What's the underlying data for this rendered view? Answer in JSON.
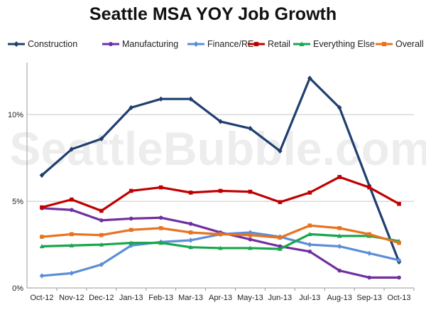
{
  "chart_data": {
    "type": "line",
    "title": "Seattle MSA YOY Job Growth",
    "watermark": "SeattleBubble.com",
    "xlabel": "",
    "ylabel": "",
    "categories": [
      "Oct-12",
      "Nov-12",
      "Dec-12",
      "Jan-13",
      "Feb-13",
      "Mar-13",
      "Apr-13",
      "May-13",
      "Jun-13",
      "Jul-13",
      "Aug-13",
      "Sep-13",
      "Oct-13"
    ],
    "ylim": [
      0,
      13
    ],
    "yticks": [
      0,
      5,
      10
    ],
    "ytick_labels": [
      "0%",
      "5%",
      "10%"
    ],
    "grid": "horizontal",
    "legend_position": "top",
    "series": [
      {
        "name": "Construction",
        "color": "#1f3f70",
        "marker": "diamond",
        "values": [
          6.5,
          8.0,
          8.6,
          10.4,
          10.9,
          10.9,
          9.6,
          9.2,
          7.9,
          12.1,
          10.4,
          5.9,
          1.5
        ]
      },
      {
        "name": "Manufacturing",
        "color": "#7030a0",
        "marker": "circle",
        "values": [
          4.6,
          4.5,
          3.9,
          4.0,
          4.05,
          3.7,
          3.2,
          2.8,
          2.4,
          2.1,
          1.0,
          0.6,
          0.6
        ]
      },
      {
        "name": "Finance/RE",
        "color": "#5b8ed8",
        "marker": "diamond",
        "values": [
          0.7,
          0.85,
          1.35,
          2.45,
          2.65,
          2.75,
          3.1,
          3.2,
          2.95,
          2.5,
          2.4,
          2.0,
          1.6
        ]
      },
      {
        "name": "Retail",
        "color": "#c00000",
        "marker": "square",
        "values": [
          4.65,
          5.1,
          4.45,
          5.6,
          5.8,
          5.5,
          5.6,
          5.55,
          4.95,
          5.5,
          6.4,
          5.8,
          4.85
        ]
      },
      {
        "name": "Everything Else",
        "color": "#1aa64c",
        "marker": "triangle",
        "values": [
          2.4,
          2.45,
          2.5,
          2.6,
          2.6,
          2.35,
          2.3,
          2.3,
          2.25,
          3.1,
          3.0,
          3.0,
          2.7
        ]
      },
      {
        "name": "Overall",
        "color": "#e8731e",
        "marker": "square",
        "values": [
          2.95,
          3.1,
          3.05,
          3.35,
          3.45,
          3.2,
          3.1,
          3.05,
          2.9,
          3.6,
          3.45,
          3.1,
          2.6
        ]
      }
    ]
  }
}
